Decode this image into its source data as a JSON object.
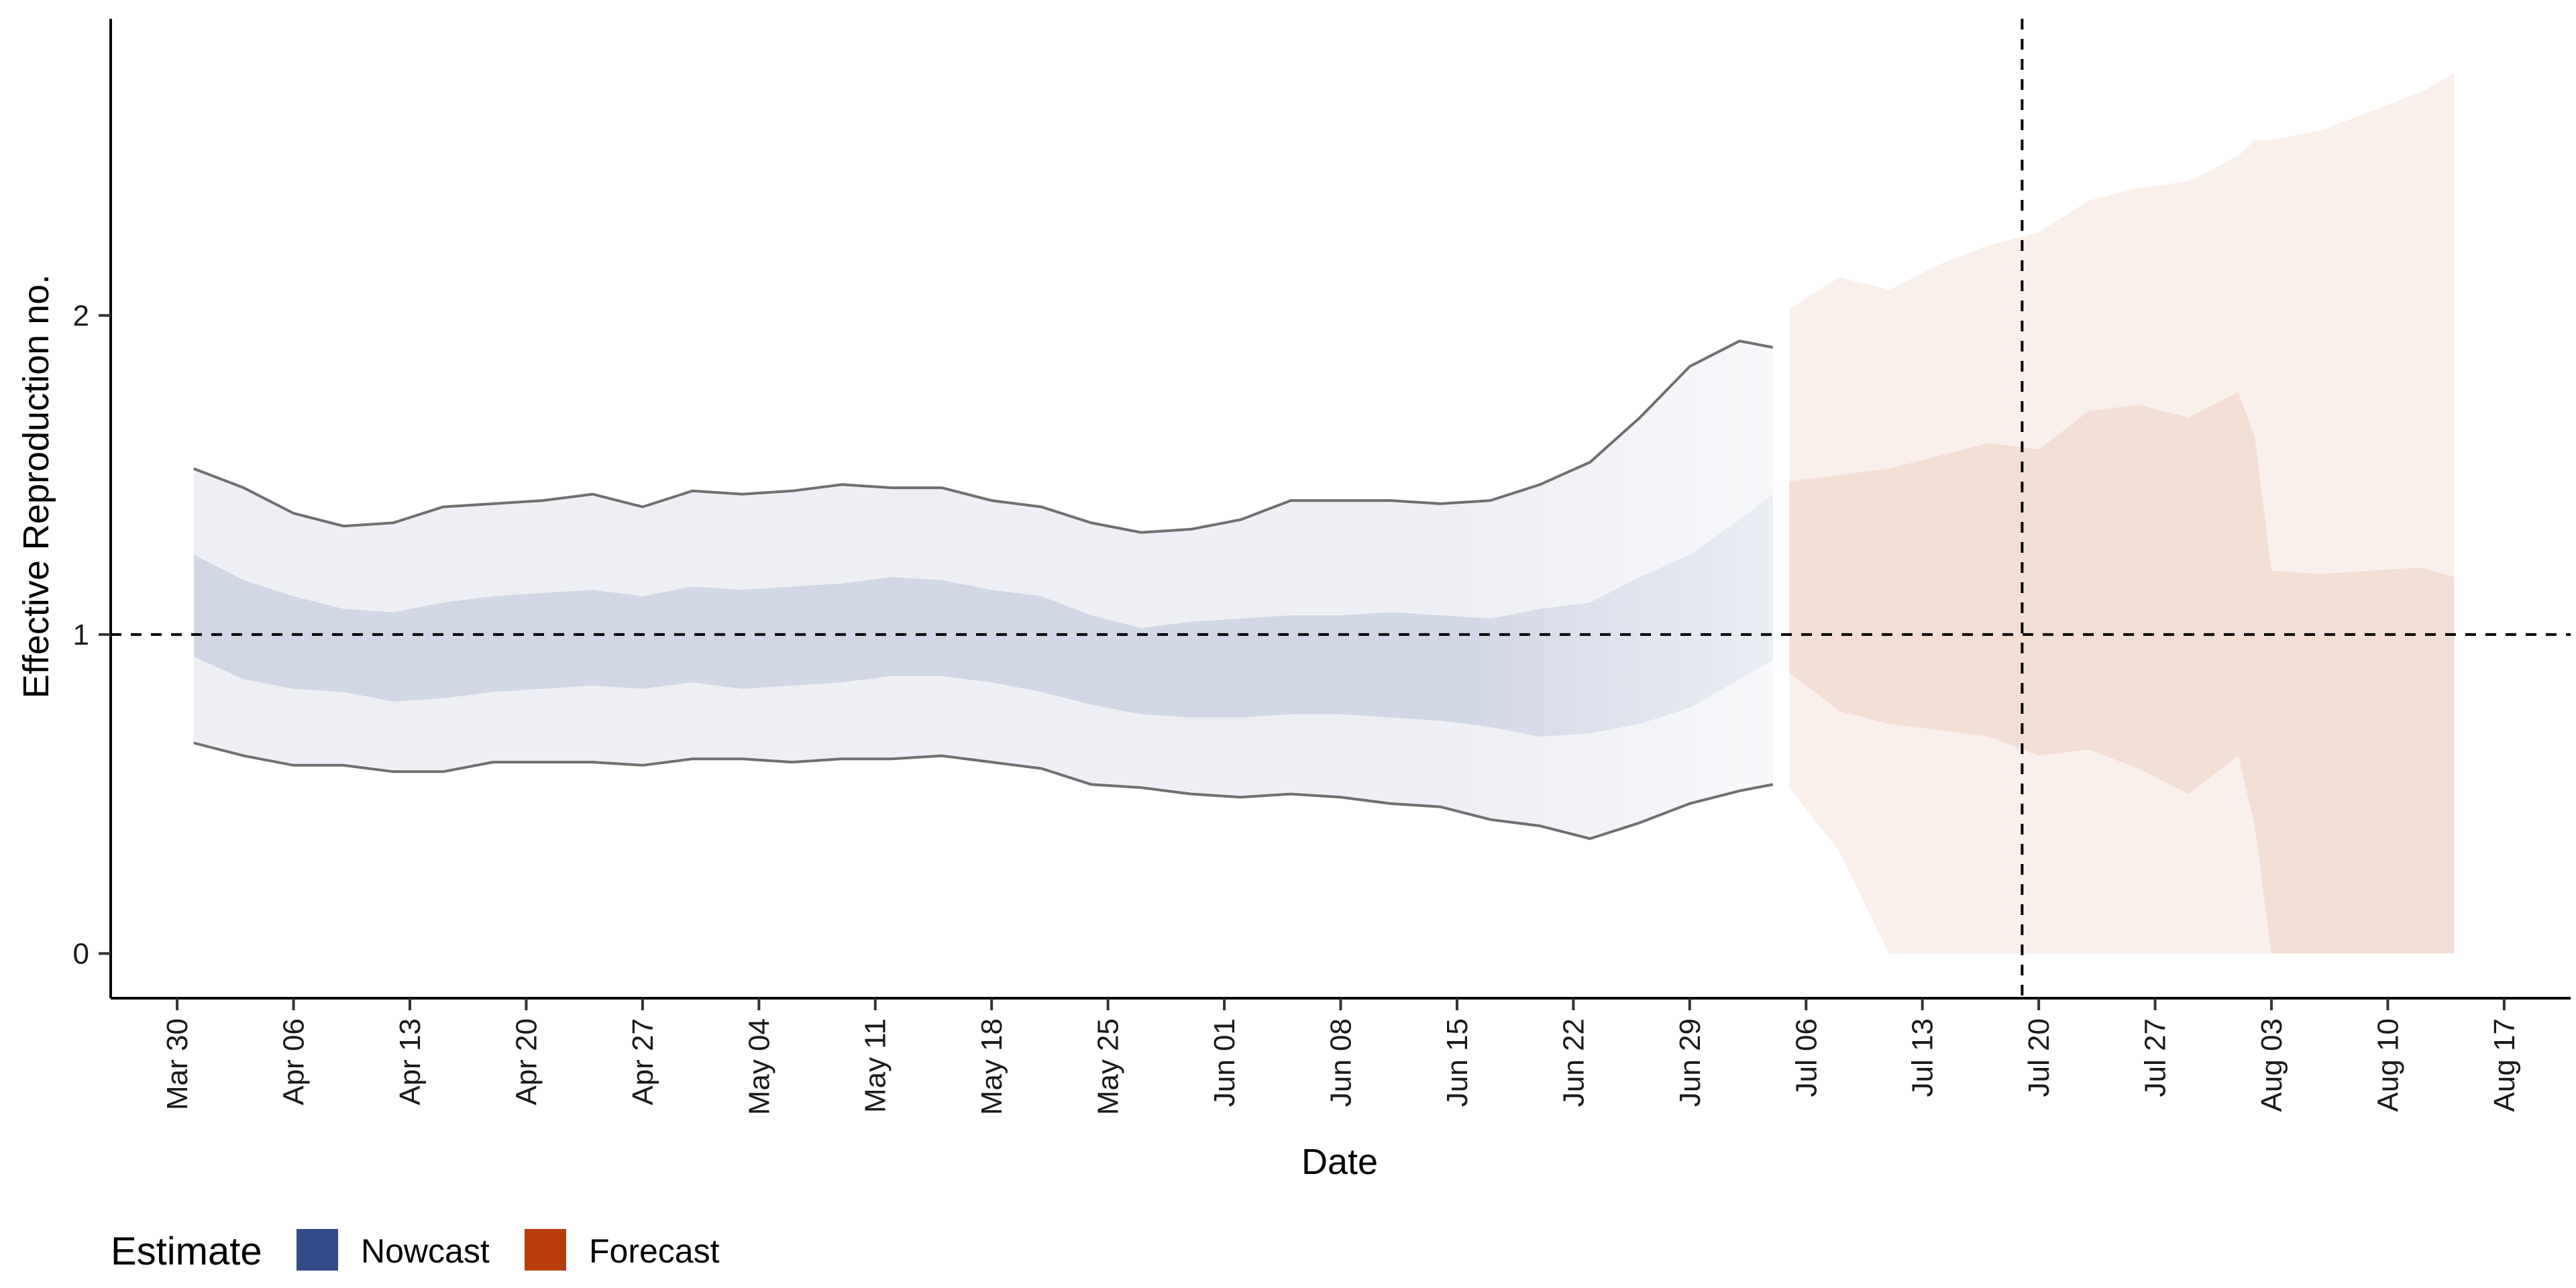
{
  "chart_data": {
    "type": "area",
    "xlabel": "Date",
    "ylabel": "Effective Reproduction no.",
    "x_range": [
      "2020-03-26",
      "2020-08-21"
    ],
    "ylim": [
      -0.14,
      2.93
    ],
    "y_ticks": [
      0,
      1,
      2
    ],
    "x_ticks": [
      {
        "date": "2020-03-30",
        "label": "Mar 30"
      },
      {
        "date": "2020-04-06",
        "label": "Apr 06"
      },
      {
        "date": "2020-04-13",
        "label": "Apr 13"
      },
      {
        "date": "2020-04-20",
        "label": "Apr 20"
      },
      {
        "date": "2020-04-27",
        "label": "Apr 27"
      },
      {
        "date": "2020-05-04",
        "label": "May 04"
      },
      {
        "date": "2020-05-11",
        "label": "May 11"
      },
      {
        "date": "2020-05-18",
        "label": "May 18"
      },
      {
        "date": "2020-05-25",
        "label": "May 25"
      },
      {
        "date": "2020-06-01",
        "label": "Jun 01"
      },
      {
        "date": "2020-06-08",
        "label": "Jun 08"
      },
      {
        "date": "2020-06-15",
        "label": "Jun 15"
      },
      {
        "date": "2020-06-22",
        "label": "Jun 22"
      },
      {
        "date": "2020-06-29",
        "label": "Jun 29"
      },
      {
        "date": "2020-07-06",
        "label": "Jul 06"
      },
      {
        "date": "2020-07-13",
        "label": "Jul 13"
      },
      {
        "date": "2020-07-20",
        "label": "Jul 20"
      },
      {
        "date": "2020-07-27",
        "label": "Jul 27"
      },
      {
        "date": "2020-08-03",
        "label": "Aug 03"
      },
      {
        "date": "2020-08-10",
        "label": "Aug 10"
      },
      {
        "date": "2020-08-17",
        "label": "Aug 17"
      }
    ],
    "reference_lines": {
      "horizontal_y": 1,
      "vertical_date": "2020-07-19"
    },
    "grid": false,
    "legend": {
      "title": "Estimate",
      "position": "bottom-left"
    },
    "series": [
      {
        "name": "Nowcast",
        "color": "#344b8a",
        "x": [
          "2020-03-31",
          "2020-04-03",
          "2020-04-06",
          "2020-04-09",
          "2020-04-12",
          "2020-04-15",
          "2020-04-18",
          "2020-04-21",
          "2020-04-24",
          "2020-04-27",
          "2020-04-30",
          "2020-05-03",
          "2020-05-06",
          "2020-05-09",
          "2020-05-12",
          "2020-05-15",
          "2020-05-18",
          "2020-05-21",
          "2020-05-24",
          "2020-05-27",
          "2020-05-30",
          "2020-06-02",
          "2020-06-05",
          "2020-06-08",
          "2020-06-11",
          "2020-06-14",
          "2020-06-17",
          "2020-06-20",
          "2020-06-23",
          "2020-06-26",
          "2020-06-29",
          "2020-07-02",
          "2020-07-04"
        ],
        "outer_upper": [
          1.52,
          1.46,
          1.38,
          1.34,
          1.35,
          1.4,
          1.41,
          1.42,
          1.44,
          1.4,
          1.45,
          1.44,
          1.45,
          1.47,
          1.46,
          1.46,
          1.42,
          1.4,
          1.35,
          1.32,
          1.33,
          1.36,
          1.42,
          1.42,
          1.42,
          1.41,
          1.42,
          1.47,
          1.54,
          1.68,
          1.84,
          1.92,
          1.9
        ],
        "inner_upper": [
          1.25,
          1.17,
          1.12,
          1.08,
          1.07,
          1.1,
          1.12,
          1.13,
          1.14,
          1.12,
          1.15,
          1.14,
          1.15,
          1.16,
          1.18,
          1.17,
          1.14,
          1.12,
          1.06,
          1.02,
          1.04,
          1.05,
          1.06,
          1.06,
          1.07,
          1.06,
          1.05,
          1.08,
          1.1,
          1.18,
          1.25,
          1.36,
          1.44
        ],
        "inner_lower": [
          0.93,
          0.86,
          0.83,
          0.82,
          0.79,
          0.8,
          0.82,
          0.83,
          0.84,
          0.83,
          0.85,
          0.83,
          0.84,
          0.85,
          0.87,
          0.87,
          0.85,
          0.82,
          0.78,
          0.75,
          0.74,
          0.74,
          0.75,
          0.75,
          0.74,
          0.73,
          0.71,
          0.68,
          0.69,
          0.72,
          0.77,
          0.86,
          0.92
        ],
        "outer_lower": [
          0.66,
          0.62,
          0.59,
          0.59,
          0.57,
          0.57,
          0.6,
          0.6,
          0.6,
          0.59,
          0.61,
          0.61,
          0.6,
          0.61,
          0.61,
          0.62,
          0.6,
          0.58,
          0.53,
          0.52,
          0.5,
          0.49,
          0.5,
          0.49,
          0.47,
          0.46,
          0.42,
          0.4,
          0.36,
          0.41,
          0.47,
          0.51,
          0.53
        ]
      },
      {
        "name": "Forecast",
        "color": "#b83d0a",
        "x": [
          "2020-07-05",
          "2020-07-08",
          "2020-07-11",
          "2020-07-14",
          "2020-07-17",
          "2020-07-20",
          "2020-07-23",
          "2020-07-26",
          "2020-07-29",
          "2020-08-01",
          "2020-08-02",
          "2020-08-03",
          "2020-08-06",
          "2020-08-09",
          "2020-08-12",
          "2020-08-14"
        ],
        "outer_upper": [
          2.02,
          2.12,
          2.08,
          2.16,
          2.22,
          2.26,
          2.36,
          2.4,
          2.42,
          2.5,
          2.55,
          2.55,
          2.58,
          2.64,
          2.7,
          2.76
        ],
        "inner_upper": [
          1.48,
          1.5,
          1.52,
          1.56,
          1.6,
          1.58,
          1.7,
          1.72,
          1.68,
          1.76,
          1.62,
          1.2,
          1.19,
          1.2,
          1.21,
          1.18
        ],
        "inner_lower": [
          0.88,
          0.76,
          0.72,
          0.7,
          0.68,
          0.62,
          0.64,
          0.58,
          0.5,
          0.62,
          0.4,
          0.0,
          0.0,
          0.0,
          0.0,
          0.0
        ],
        "outer_lower": [
          0.52,
          0.32,
          0.0,
          0.0,
          0.0,
          0.0,
          0.0,
          0.0,
          0.0,
          0.0,
          0.0,
          0.0,
          0.0,
          0.0,
          0.0,
          0.0
        ]
      }
    ]
  }
}
